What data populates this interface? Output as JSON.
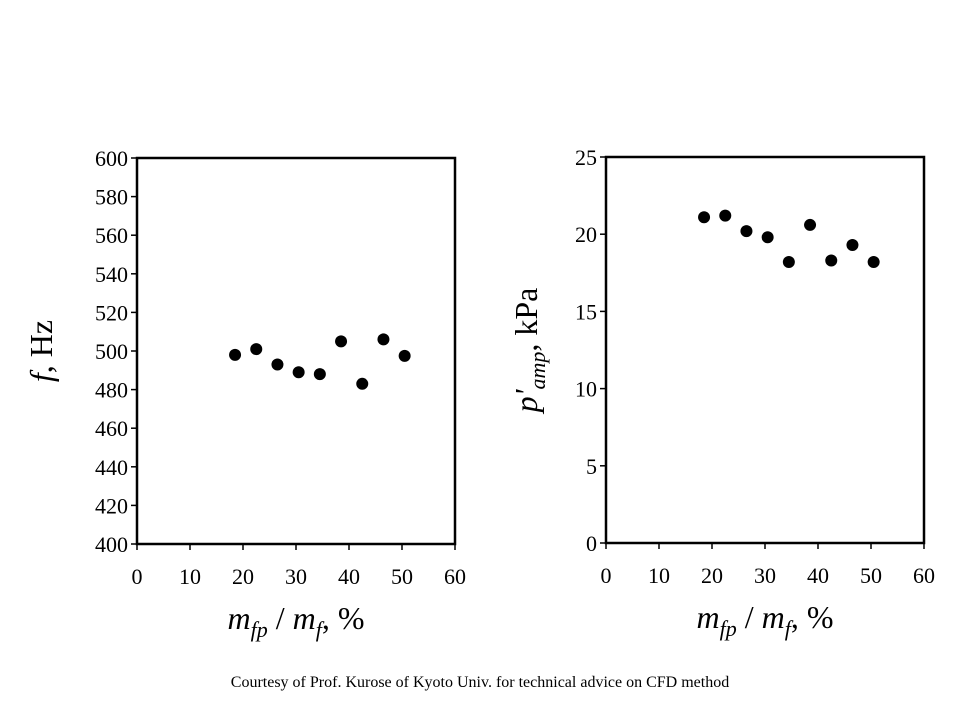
{
  "chart_data": [
    {
      "type": "scatter",
      "title": "",
      "xlabel_parts": {
        "m1": "m",
        "s1": "fp",
        "sep": " / ",
        "m2": "m",
        "s2": "f",
        "unit": ", %"
      },
      "ylabel_parts": {
        "var": "f",
        "unit": ", Hz"
      },
      "xlim": [
        0,
        60
      ],
      "ylim": [
        400,
        600
      ],
      "xticks": [
        0,
        10,
        20,
        30,
        40,
        50,
        60
      ],
      "yticks": [
        400,
        420,
        440,
        460,
        480,
        500,
        520,
        540,
        560,
        580,
        600
      ],
      "grid": false,
      "legend": "none",
      "series": [
        {
          "x": [
            18.5,
            22.5,
            26.5,
            30.5,
            34.5,
            38.5,
            42.5,
            46.5,
            50.5
          ],
          "y": [
            498,
            501,
            493,
            489,
            488,
            505,
            483,
            506,
            497.5
          ]
        }
      ]
    },
    {
      "type": "scatter",
      "title": "",
      "xlabel_parts": {
        "m1": "m",
        "s1": "fp",
        "sep": " / ",
        "m2": "m",
        "s2": "f",
        "unit": ", %"
      },
      "ylabel_parts": {
        "var": "p'",
        "sub": "amp",
        "unit": ", kPa"
      },
      "xlim": [
        0,
        60
      ],
      "ylim": [
        0,
        25
      ],
      "xticks": [
        0,
        10,
        20,
        30,
        40,
        50,
        60
      ],
      "yticks": [
        0,
        5,
        10,
        15,
        20,
        25
      ],
      "grid": false,
      "legend": "none",
      "series": [
        {
          "x": [
            18.5,
            22.5,
            26.5,
            30.5,
            34.5,
            38.5,
            42.5,
            46.5,
            50.5
          ],
          "y": [
            21.1,
            21.2,
            20.2,
            19.8,
            18.2,
            20.6,
            18.3,
            19.3,
            18.2
          ]
        }
      ]
    }
  ],
  "footnote": "Courtesy of Prof. Kurose of Kyoto Univ.  for technical advice on CFD method",
  "colors": {
    "marker": "#000000",
    "axis": "#000000",
    "background": "#ffffff"
  }
}
